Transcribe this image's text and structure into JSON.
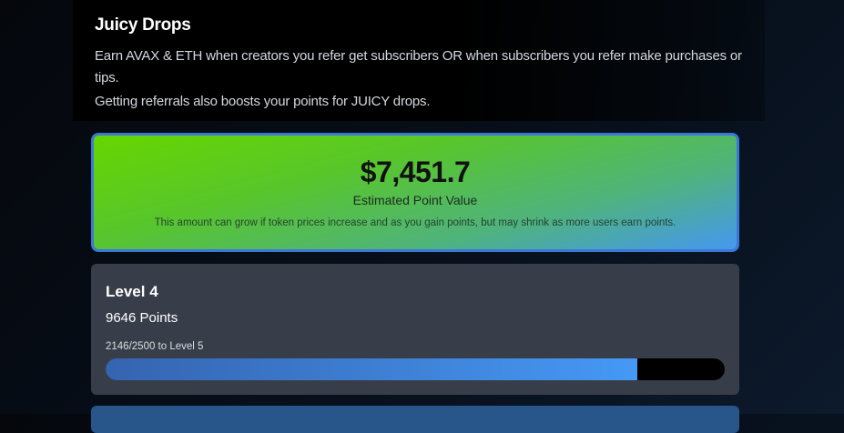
{
  "intro": {
    "title": "Juicy Drops",
    "description": "Earn AVAX & ETH when creators you refer get subscribers OR when subscribers you refer make purchases or tips.",
    "description2": "Getting referrals also boosts your points for JUICY drops."
  },
  "value_card": {
    "amount": "$7,451.7",
    "label": "Estimated Point Value",
    "note": "This amount can grow if token prices increase and as you gain points, but may shrink as more users earn points."
  },
  "level_card": {
    "level": "Level 4",
    "points": "9646 Points",
    "progress_label": "2146/2500 to Level 5",
    "progress_current": 2146,
    "progress_target": 2500
  },
  "colors": {
    "accent": "#4599f5",
    "value_green": "#66d600",
    "card_border": "#3a78d8"
  }
}
